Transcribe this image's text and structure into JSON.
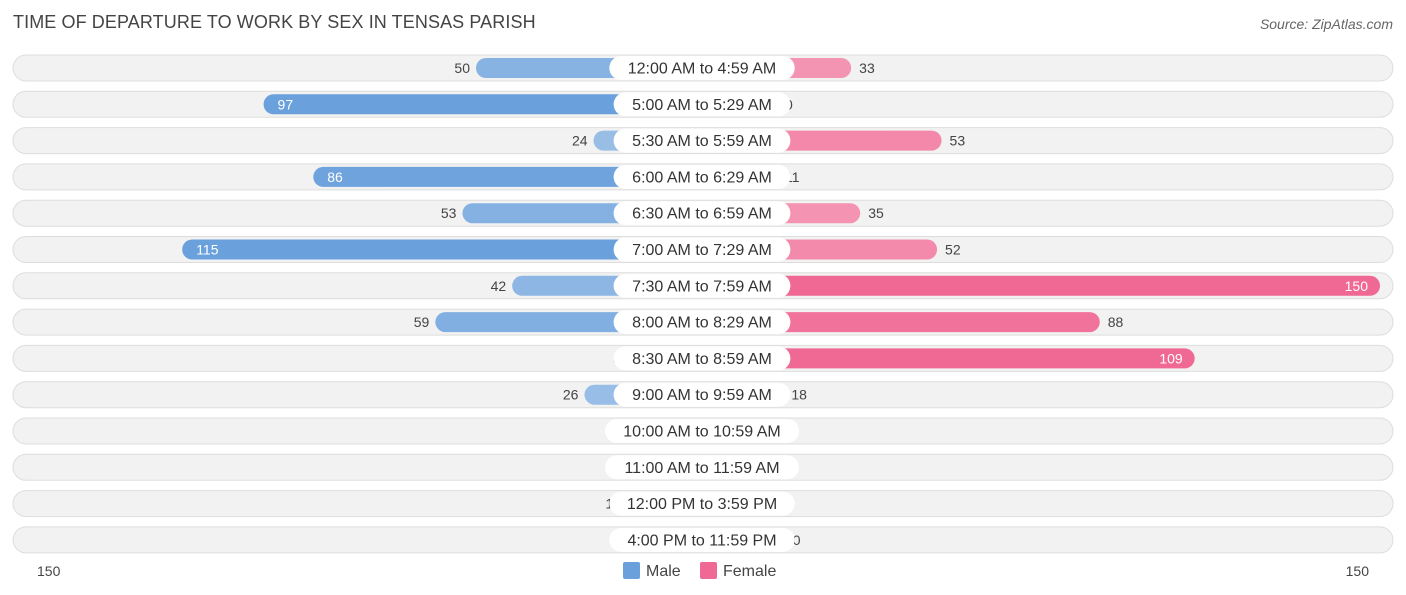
{
  "header": {
    "title": "TIME OF DEPARTURE TO WORK BY SEX IN TENSAS PARISH",
    "source": "Source: ZipAtlas.com"
  },
  "colors": {
    "male_strong": "#6aa0dc",
    "male_light": "#a9c8ea",
    "female_strong": "#f06894",
    "female_light": "#f6a8c1"
  },
  "chart_data": {
    "type": "bar",
    "orientation": "horizontal-diverging",
    "categories": [
      "12:00 AM to 4:59 AM",
      "5:00 AM to 5:29 AM",
      "5:30 AM to 5:59 AM",
      "6:00 AM to 6:29 AM",
      "6:30 AM to 6:59 AM",
      "7:00 AM to 7:29 AM",
      "7:30 AM to 7:59 AM",
      "8:00 AM to 8:29 AM",
      "8:30 AM to 8:59 AM",
      "9:00 AM to 9:59 AM",
      "10:00 AM to 10:59 AM",
      "11:00 AM to 11:59 AM",
      "12:00 PM to 3:59 PM",
      "4:00 PM to 11:59 PM"
    ],
    "series": [
      {
        "name": "Male",
        "values": [
          50,
          97,
          24,
          86,
          53,
          115,
          42,
          59,
          3,
          26,
          0,
          0,
          14,
          4
        ]
      },
      {
        "name": "Female",
        "values": [
          33,
          0,
          53,
          11,
          35,
          52,
          150,
          88,
          109,
          18,
          0,
          1,
          0,
          10
        ]
      }
    ],
    "xlim": [
      -150,
      150
    ],
    "axis_labels": {
      "left": "150",
      "right": "150"
    },
    "legend": [
      "Male",
      "Female"
    ],
    "legend_position": "bottom-center"
  }
}
